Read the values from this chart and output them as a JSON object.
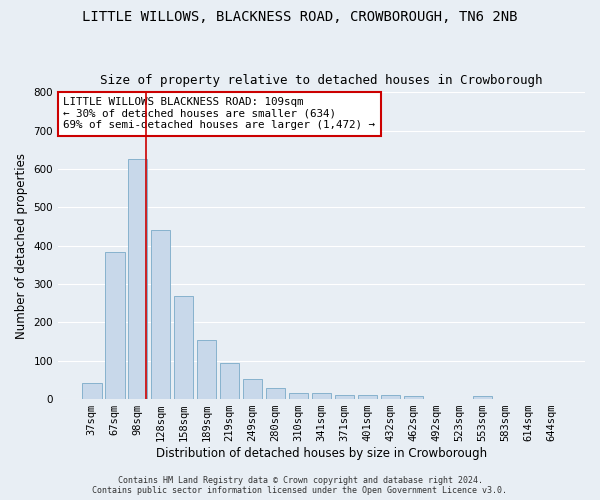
{
  "title": "LITTLE WILLOWS, BLACKNESS ROAD, CROWBOROUGH, TN6 2NB",
  "subtitle": "Size of property relative to detached houses in Crowborough",
  "xlabel": "Distribution of detached houses by size in Crowborough",
  "ylabel": "Number of detached properties",
  "categories": [
    "37sqm",
    "67sqm",
    "98sqm",
    "128sqm",
    "158sqm",
    "189sqm",
    "219sqm",
    "249sqm",
    "280sqm",
    "310sqm",
    "341sqm",
    "371sqm",
    "401sqm",
    "432sqm",
    "462sqm",
    "492sqm",
    "523sqm",
    "553sqm",
    "583sqm",
    "614sqm",
    "644sqm"
  ],
  "values": [
    43,
    383,
    625,
    440,
    268,
    155,
    95,
    52,
    28,
    17,
    17,
    11,
    10,
    10,
    7,
    0,
    0,
    8,
    0,
    0,
    0
  ],
  "bar_color": "#c8d8ea",
  "bar_edge_color": "#7aaac8",
  "redline_color": "#cc0000",
  "annotation_text": "LITTLE WILLOWS BLACKNESS ROAD: 109sqm\n← 30% of detached houses are smaller (634)\n69% of semi-detached houses are larger (1,472) →",
  "annotation_box_color": "#ffffff",
  "annotation_box_edge": "#cc0000",
  "ylim": [
    0,
    800
  ],
  "yticks": [
    0,
    100,
    200,
    300,
    400,
    500,
    600,
    700,
    800
  ],
  "footer": "Contains HM Land Registry data © Crown copyright and database right 2024.\nContains public sector information licensed under the Open Government Licence v3.0.",
  "background_color": "#e8eef4",
  "plot_bg_color": "#e8eef4",
  "grid_color": "#ffffff",
  "title_fontsize": 10,
  "subtitle_fontsize": 9,
  "tick_fontsize": 7.5,
  "label_fontsize": 8.5,
  "annotation_fontsize": 7.8,
  "footer_fontsize": 6
}
